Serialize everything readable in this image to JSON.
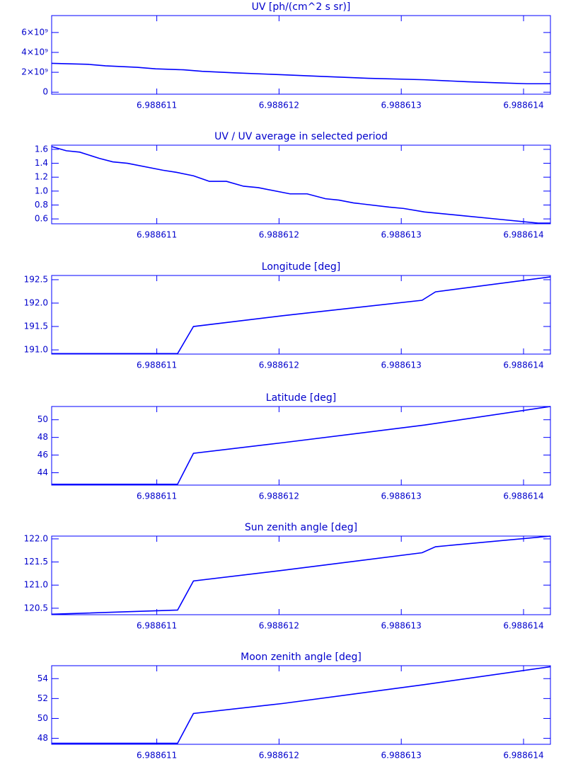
{
  "chart_data": [
    {
      "type": "line",
      "title": "UV [ph/(cm^2 s sr)]",
      "color": "#0000ff",
      "x": [
        6.98861014,
        6.98861044,
        6.98861058,
        6.98861084,
        6.98861099,
        6.98861122,
        6.98861137,
        6.98861163,
        6.98861203,
        6.98861232,
        6.98861273,
        6.98861319,
        6.98861354,
        6.98861377,
        6.98861403,
        6.98861422
      ],
      "values": [
        2900000000,
        2800000000,
        2650000000,
        2500000000,
        2350000000,
        2250000000,
        2100000000,
        1950000000,
        1750000000,
        1600000000,
        1400000000,
        1250000000,
        1050000000,
        950000000,
        850000000,
        850000000
      ],
      "xlim": [
        6.98861014,
        6.98861422
      ],
      "xticks": [
        6.988611,
        6.988612,
        6.988613,
        6.988614
      ],
      "ylim": [
        -200000000,
        7700000000
      ],
      "yticks": [
        0,
        {
          "value": 2000000000,
          "label": "2×10⁹"
        },
        {
          "value": 4000000000,
          "label": "4×10⁹"
        },
        {
          "value": 6000000000,
          "label": "6×10⁹"
        }
      ]
    },
    {
      "type": "line",
      "title": "UV / UV average in selected period",
      "color": "#0000ff",
      "x": [
        6.98861014,
        6.98861026,
        6.98861037,
        6.98861053,
        6.98861064,
        6.98861076,
        6.98861105,
        6.98861116,
        6.9886113,
        6.98861143,
        6.98861157,
        6.98861171,
        6.98861183,
        6.98861209,
        6.98861223,
        6.98861238,
        6.98861249,
        6.98861261,
        6.9886129,
        6.98861302,
        6.98861319,
        6.98861348,
        6.98861377,
        6.98861412,
        6.98861422
      ],
      "values": [
        1.64,
        1.58,
        1.56,
        1.47,
        1.42,
        1.4,
        1.3,
        1.27,
        1.22,
        1.14,
        1.14,
        1.07,
        1.05,
        0.96,
        0.96,
        0.89,
        0.87,
        0.83,
        0.77,
        0.75,
        0.7,
        0.65,
        0.6,
        0.54,
        0.54
      ],
      "xlim": [
        6.98861014,
        6.98861422
      ],
      "xticks": [
        6.988611,
        6.988612,
        6.988613,
        6.988614
      ],
      "ylim": [
        0.53,
        1.66
      ],
      "yticks": [
        {
          "value": 0.6,
          "label": "0.6"
        },
        {
          "value": 0.8,
          "label": "0.8"
        },
        {
          "value": 1,
          "label": "1.0"
        },
        {
          "value": 1.2,
          "label": "1.2"
        },
        {
          "value": 1.4,
          "label": "1.4"
        },
        {
          "value": 1.6,
          "label": "1.6"
        }
      ]
    },
    {
      "type": "line",
      "title": "Longitude [deg]",
      "color": "#0000ff",
      "x": [
        6.98861014,
        6.98861117,
        6.9886113,
        6.98861203,
        6.98861317,
        6.98861328,
        6.98861422
      ],
      "values": [
        190.92,
        190.92,
        191.5,
        191.73,
        192.06,
        192.24,
        192.56
      ],
      "xlim": [
        6.98861014,
        6.98861422
      ],
      "xticks": [
        6.988611,
        6.988612,
        6.988613,
        6.988614
      ],
      "ylim": [
        190.91,
        192.59
      ],
      "yticks": [
        {
          "value": 191,
          "label": "191.0"
        },
        191.5,
        {
          "value": 192,
          "label": "192.0"
        },
        192.5
      ]
    },
    {
      "type": "line",
      "title": "Latitude [deg]",
      "color": "#0000ff",
      "x": [
        6.98861014,
        6.98861117,
        6.9886113,
        6.98861203,
        6.98861319,
        6.98861422
      ],
      "values": [
        42.7,
        42.7,
        46.2,
        47.4,
        49.4,
        51.5
      ],
      "xlim": [
        6.98861014,
        6.98861422
      ],
      "xticks": [
        6.988611,
        6.988612,
        6.988613,
        6.988614
      ],
      "ylim": [
        42.6,
        51.5
      ],
      "yticks": [
        44,
        46,
        48,
        50
      ]
    },
    {
      "type": "line",
      "title": "Sun zenith angle [deg]",
      "color": "#0000ff",
      "x": [
        6.98861014,
        6.98861117,
        6.9886113,
        6.98861203,
        6.98861317,
        6.98861328,
        6.98861422
      ],
      "values": [
        120.37,
        120.46,
        121.09,
        121.32,
        121.7,
        121.83,
        122.06
      ],
      "xlim": [
        6.98861014,
        6.98861422
      ],
      "xticks": [
        6.988611,
        6.988612,
        6.988613,
        6.988614
      ],
      "ylim": [
        120.36,
        122.06
      ],
      "yticks": [
        120.5,
        {
          "value": 121,
          "label": "121.0"
        },
        121.5,
        {
          "value": 122,
          "label": "122.0"
        }
      ]
    },
    {
      "type": "line",
      "title": "Moon zenith angle [deg]",
      "color": "#0000ff",
      "x": [
        6.98861014,
        6.98861117,
        6.9886113,
        6.98861203,
        6.98861319,
        6.98861422
      ],
      "values": [
        47.5,
        47.5,
        50.5,
        51.5,
        53.4,
        55.2
      ],
      "xlim": [
        6.98861014,
        6.98861422
      ],
      "xticks": [
        6.988611,
        6.988612,
        6.988613,
        6.988614
      ],
      "ylim": [
        47.4,
        55.3
      ],
      "yticks": [
        48,
        50,
        52,
        54
      ]
    }
  ]
}
